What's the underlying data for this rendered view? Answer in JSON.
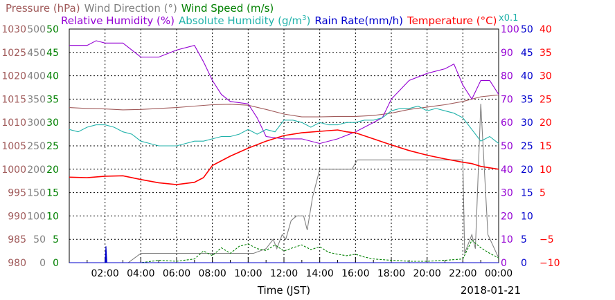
{
  "chart_data": {
    "type": "line",
    "date_label": "2018-01-21",
    "xlabel": "Time (JST)",
    "x_ticks": [
      "02:00",
      "04:00",
      "06:00",
      "08:00",
      "10:00",
      "12:00",
      "14:00",
      "16:00",
      "18:00",
      "20:00",
      "22:00",
      "00:00"
    ],
    "x_range_hours": [
      0.0,
      24.0
    ],
    "grid": true,
    "legend_titles": [
      {
        "name": "Pressure (hPa)",
        "color": "#a05a5a"
      },
      {
        "name": "Wind Direction (°)",
        "color": "#808080"
      },
      {
        "name": "Wind Speed (m/s)",
        "color": "#008000"
      },
      {
        "name": "Relative Humidity (%)",
        "color": "#9400d3"
      },
      {
        "name": "Absolute Humidity (g/m",
        "sup": "3",
        "close": ")",
        "color": "#20b2aa"
      },
      {
        "name": "Rain Rate(mm/h)",
        "color": "#0000cd"
      },
      {
        "name": "Temperature (°C)",
        "color": "#ff0000"
      },
      {
        "name": "x0.1",
        "color": "#20b2aa"
      }
    ],
    "axes": {
      "pressure": {
        "ticks": [
          "1030",
          "1025",
          "1020",
          "1015",
          "1010",
          "1005",
          "1000",
          "995",
          "990",
          "985",
          "980"
        ],
        "range": [
          980,
          1030
        ],
        "color": "#a05a5a"
      },
      "wind_direction": {
        "ticks": [
          "500",
          "450",
          "400",
          "350",
          "300",
          "250",
          "200",
          "150",
          "100",
          "50",
          "0"
        ],
        "range": [
          0,
          500
        ],
        "color": "#808080"
      },
      "wind_speed": {
        "ticks": [
          "50",
          "45",
          "40",
          "35",
          "30",
          "25",
          "20",
          "15",
          "10",
          "5",
          "0"
        ],
        "range": [
          0,
          50
        ],
        "color": "#008000"
      },
      "relative_humidity": {
        "ticks": [
          "100",
          "90",
          "80",
          "70",
          "60",
          "50",
          "40",
          "30",
          "20",
          "10",
          "0"
        ],
        "range": [
          0,
          100
        ],
        "color": "#9400d3"
      },
      "rain_rate": {
        "ticks": [
          "50",
          "45",
          "40",
          "35",
          "30",
          "25",
          "20",
          "15",
          "10",
          "5",
          "0"
        ],
        "range": [
          0,
          50
        ],
        "color": "#0000cd"
      },
      "temperature": {
        "ticks": [
          "40",
          "35",
          "30",
          "25",
          "20",
          "15",
          "10",
          "5",
          "−5",
          "−10"
        ],
        "range": [
          -10,
          40
        ],
        "color": "#ff0000"
      }
    },
    "series": [
      {
        "name": "Pressure (hPa)",
        "color": "#a05a5a",
        "axis": "pressure",
        "x": [
          0,
          1,
          2,
          3,
          4,
          5,
          6,
          7,
          8,
          9,
          10,
          11,
          12,
          13,
          14,
          15,
          16,
          17,
          18,
          19,
          20,
          21,
          22,
          23,
          24
        ],
        "y": [
          1013.2,
          1013.0,
          1012.9,
          1012.7,
          1012.8,
          1013.0,
          1013.2,
          1013.5,
          1013.8,
          1013.9,
          1013.7,
          1012.8,
          1011.8,
          1011.2,
          1011.2,
          1011.3,
          1011.3,
          1011.5,
          1012.0,
          1012.8,
          1013.3,
          1013.8,
          1014.5,
          1015.5,
          1015.9
        ]
      },
      {
        "name": "Wind Direction (°)",
        "color": "#808080",
        "axis": "wind_direction",
        "x": [
          0,
          2.0,
          3.3,
          4.0,
          5.0,
          6.0,
          7.0,
          8.0,
          9.0,
          9.6,
          10.3,
          11.0,
          11.4,
          11.6,
          11.9,
          12.1,
          12.4,
          12.7,
          13.1,
          13.3,
          13.6,
          14.0,
          14.4,
          14.9,
          15.3,
          15.8,
          16.1,
          17.0,
          18.0,
          19.0,
          20.0,
          21.0,
          21.8,
          22.0,
          22.1,
          22.5,
          22.7,
          23.0,
          23.4,
          24.0
        ],
        "y": [
          0,
          0,
          0,
          20,
          20,
          20,
          20,
          20,
          20,
          20,
          20,
          30,
          50,
          30,
          60,
          50,
          90,
          100,
          100,
          70,
          140,
          200,
          200,
          200,
          200,
          200,
          220,
          220,
          220,
          220,
          220,
          220,
          220,
          220,
          20,
          60,
          30,
          340,
          60,
          10
        ]
      },
      {
        "name": "Wind Speed (m/s)",
        "color": "#008000",
        "axis": "wind_speed",
        "x": [
          0,
          4,
          5,
          6,
          7,
          7.5,
          8,
          8.5,
          9,
          9.5,
          10,
          10.5,
          11,
          11.5,
          12,
          12.5,
          13,
          13.5,
          14,
          14.5,
          15,
          15.5,
          16,
          16.5,
          17,
          18,
          19,
          20,
          21,
          22,
          22.5,
          23,
          23.5,
          24
        ],
        "y": [
          0,
          0,
          0.5,
          0.3,
          0.8,
          2.5,
          1.5,
          3.2,
          2.0,
          3.5,
          4.0,
          3.0,
          2.6,
          3.8,
          2.5,
          3.2,
          3.8,
          2.8,
          3.4,
          2.2,
          1.8,
          1.5,
          1.8,
          1.2,
          0.8,
          0.5,
          0.3,
          0.3,
          0.5,
          0.8,
          4.8,
          3.2,
          2.0,
          1.0
        ]
      },
      {
        "name": "Relative Humidity (%)",
        "color": "#9400d3",
        "axis": "relative_humidity",
        "x": [
          0,
          1,
          1.5,
          2,
          3,
          4,
          5,
          6,
          7,
          7.5,
          8,
          8.5,
          9,
          10,
          10.5,
          11,
          12,
          13,
          14,
          15,
          16,
          17,
          17.5,
          18,
          19,
          20,
          21,
          21.5,
          22,
          22.5,
          23,
          23.5,
          24
        ],
        "y": [
          93,
          93,
          95,
          94,
          94,
          88,
          88,
          91,
          93,
          86,
          78,
          72,
          69,
          68,
          62,
          54,
          53,
          53,
          51,
          53,
          56,
          60,
          62,
          70,
          78,
          81,
          83,
          85,
          76,
          70,
          78,
          78,
          72
        ]
      },
      {
        "name": "Absolute Humidity (g/m3) x0.1",
        "color": "#20b2aa",
        "axis": "relative_humidity",
        "x": [
          0,
          0.5,
          1,
          1.5,
          2,
          2.5,
          3,
          3.5,
          4,
          4.5,
          5,
          5.5,
          6,
          6.5,
          7,
          7.5,
          8,
          8.5,
          9,
          9.5,
          10,
          10.5,
          11,
          11.5,
          12,
          12.5,
          13,
          13.5,
          14,
          14.5,
          15,
          15.5,
          16,
          16.5,
          17,
          17.5,
          18,
          18.5,
          19,
          19.5,
          20,
          20.5,
          21,
          21.5,
          22,
          22.5,
          23,
          23.5,
          24
        ],
        "y": [
          57,
          56,
          58,
          59,
          59,
          58,
          56,
          55,
          52,
          51,
          50,
          50,
          50,
          51,
          52,
          52,
          53,
          54,
          54,
          55,
          57,
          55,
          57,
          56,
          61,
          61,
          60,
          58,
          60,
          59,
          59,
          60,
          60,
          61,
          61,
          62,
          65,
          66,
          66,
          67,
          65,
          66,
          65,
          64,
          62,
          57,
          52,
          54,
          51
        ]
      },
      {
        "name": "Rain Rate(mm/h)",
        "color": "#0000cd",
        "axis": "rain_rate",
        "x": [
          0,
          2.0,
          2.05,
          2.1,
          2.2,
          24
        ],
        "y": [
          0,
          0,
          3.5,
          0,
          0,
          0
        ]
      },
      {
        "name": "Temperature (°C)",
        "color": "#ff0000",
        "axis": "temperature",
        "x": [
          0,
          1,
          2,
          3,
          4,
          5,
          6,
          7,
          7.5,
          8,
          9,
          10,
          11,
          12,
          13,
          14,
          15,
          15.5,
          16,
          17,
          18,
          19,
          20,
          21,
          22,
          22.5,
          23,
          23.5,
          24
        ],
        "y": [
          8.3,
          8.2,
          8.5,
          8.6,
          7.8,
          7.1,
          6.7,
          7.2,
          8.2,
          10.8,
          12.8,
          14.5,
          16.0,
          17.2,
          17.8,
          18.1,
          18.4,
          18.0,
          17.8,
          16.5,
          15.2,
          14.0,
          13.0,
          12.2,
          11.5,
          11.2,
          10.6,
          10.3,
          10.0
        ]
      }
    ]
  }
}
